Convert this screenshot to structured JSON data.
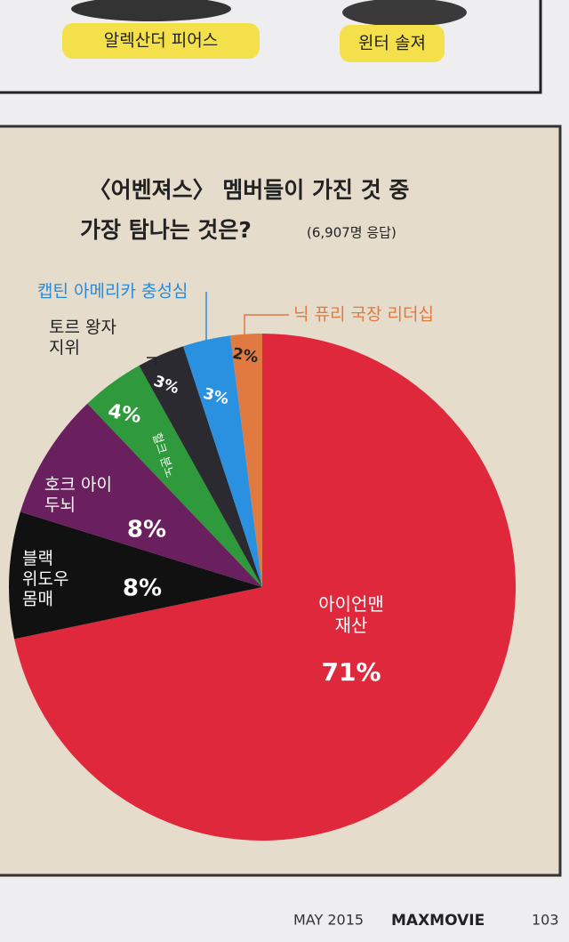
{
  "header": {
    "tags": [
      "알렉산더 피어스",
      "윈터 솔져"
    ]
  },
  "chart_data": {
    "type": "pie",
    "title": [
      "〈어벤져스〉 멤버들이 가진 것 중",
      "가장 탐나는 것은?"
    ],
    "subtitle": "(6,907명 응답)",
    "categories": [
      "아이언맨\n재산",
      "블랙\n위도우\n몸매",
      "호크 아이\n두뇌",
      "헐크 분노",
      "토르 왕자\n지위",
      "캡틴 아메리카 충성심",
      "닉 퓨리 국장 리더십"
    ],
    "values": [
      71,
      8,
      8,
      4,
      3,
      3,
      2
    ],
    "value_labels": [
      "71%",
      "8%",
      "8%",
      "4%",
      "3%",
      "3%",
      "2%"
    ],
    "colors": [
      "#e0283c",
      "#111111",
      "#6a1f5e",
      "#2e9a3c",
      "#2b2a30",
      "#2a90e0",
      "#e07a40"
    ]
  },
  "footer": {
    "date": "MAY 2015",
    "magazine": "MAXMOVIE",
    "page": "103"
  }
}
